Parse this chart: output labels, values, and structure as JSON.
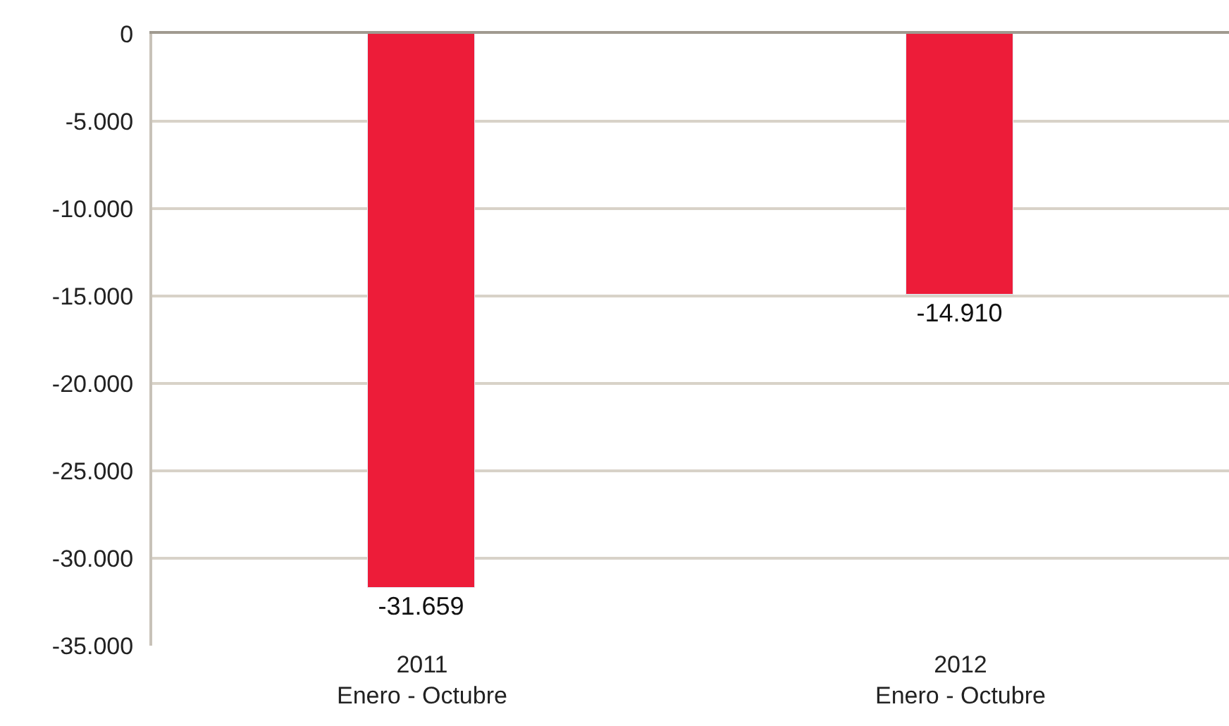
{
  "chart_data": {
    "type": "bar",
    "categories": [
      "2011\nEnero - Octubre",
      "2012\nEnero - Octubre"
    ],
    "values": [
      -31659,
      -14910
    ],
    "value_labels": [
      "-31.659",
      "-14.910"
    ],
    "color": "#ed1c39",
    "ylim": [
      -35000,
      0
    ],
    "yticks": [
      {
        "value": 0,
        "label": "0"
      },
      {
        "value": -5000,
        "label": "-5.000"
      },
      {
        "value": -10000,
        "label": "-10.000"
      },
      {
        "value": -15000,
        "label": "-15.000"
      },
      {
        "value": -20000,
        "label": "-20.000"
      },
      {
        "value": -25000,
        "label": "-25.000"
      },
      {
        "value": -30000,
        "label": "-30.000"
      },
      {
        "value": -35000,
        "label": "-35.000"
      }
    ],
    "grid": "y"
  }
}
